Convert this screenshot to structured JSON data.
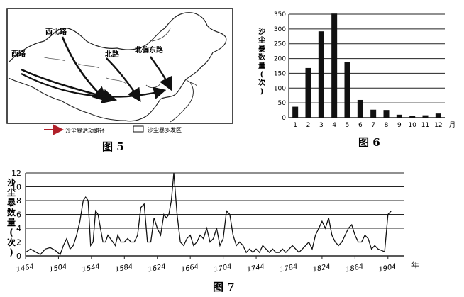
{
  "figure5": {
    "caption": "图 5",
    "routes": [
      {
        "name": "西路"
      },
      {
        "name": "西北路"
      },
      {
        "name": "北路"
      },
      {
        "name": "北偏东路"
      }
    ],
    "legend": {
      "path_label": "沙尘暴活动路径",
      "area_label": "沙尘暴多发区"
    }
  },
  "figure6": {
    "caption": "图 6",
    "chart_data": {
      "type": "bar",
      "ylabel": "沙尘暴数量(次)",
      "xunit": "月",
      "categories": [
        "1",
        "2",
        "3",
        "4",
        "5",
        "6",
        "7",
        "8",
        "9",
        "10",
        "11",
        "12"
      ],
      "values": [
        37,
        168,
        292,
        352,
        188,
        60,
        27,
        26,
        10,
        6,
        8,
        14
      ],
      "ylim": [
        0,
        350
      ],
      "yticks": [
        0,
        50,
        100,
        150,
        200,
        250,
        300,
        350
      ],
      "grid": true
    }
  },
  "figure7": {
    "caption": "图 7",
    "chart_data": {
      "type": "line",
      "ylabel": "沙尘暴数量(次)",
      "xunit": "年",
      "xticks": [
        1464,
        1504,
        1544,
        1584,
        1624,
        1664,
        1704,
        1744,
        1784,
        1824,
        1864,
        1904
      ],
      "xlim": [
        1464,
        1924
      ],
      "ylim": [
        0,
        12
      ],
      "yticks": [
        0,
        2,
        4,
        6,
        8,
        10,
        12
      ],
      "grid": true,
      "x": [
        1464,
        1470,
        1476,
        1482,
        1488,
        1494,
        1500,
        1506,
        1510,
        1514,
        1518,
        1522,
        1526,
        1530,
        1534,
        1537,
        1540,
        1543,
        1546,
        1549,
        1552,
        1555,
        1558,
        1561,
        1564,
        1567,
        1570,
        1573,
        1576,
        1580,
        1584,
        1588,
        1592,
        1596,
        1600,
        1604,
        1608,
        1612,
        1616,
        1620,
        1624,
        1628,
        1632,
        1635,
        1638,
        1641,
        1644,
        1648,
        1652,
        1656,
        1660,
        1664,
        1668,
        1672,
        1676,
        1680,
        1684,
        1688,
        1692,
        1696,
        1700,
        1704,
        1708,
        1712,
        1716,
        1720,
        1724,
        1728,
        1732,
        1736,
        1740,
        1744,
        1748,
        1752,
        1756,
        1760,
        1764,
        1768,
        1772,
        1776,
        1780,
        1784,
        1788,
        1792,
        1796,
        1800,
        1804,
        1808,
        1812,
        1816,
        1820,
        1824,
        1828,
        1832,
        1836,
        1840,
        1844,
        1848,
        1852,
        1856,
        1860,
        1864,
        1868,
        1872,
        1876,
        1880,
        1884,
        1888,
        1892,
        1896,
        1900,
        1904,
        1908
      ],
      "y": [
        0.5,
        1,
        0.6,
        0.2,
        1,
        1.2,
        0.8,
        0.2,
        1.5,
        2.5,
        1,
        1.5,
        3,
        5,
        8,
        8.5,
        8,
        1.5,
        2,
        6.5,
        6,
        4,
        2,
        2,
        3,
        2.5,
        2,
        1.5,
        3,
        2,
        2,
        2.5,
        2,
        2,
        3,
        7,
        7.5,
        2,
        2,
        5.5,
        4,
        3,
        6,
        5.5,
        6,
        8,
        12,
        6,
        2,
        1.5,
        2.5,
        3,
        1.5,
        2,
        3,
        2.5,
        4,
        2,
        2.5,
        4,
        1.5,
        2.5,
        6.5,
        6,
        3,
        1.5,
        2,
        1.5,
        0.5,
        1,
        0.5,
        1,
        0.5,
        1.5,
        1,
        0.5,
        1,
        0.5,
        0.5,
        1,
        0.5,
        1,
        1.5,
        1,
        0.5,
        1,
        1.5,
        2,
        1,
        3,
        4,
        5,
        4,
        5.5,
        3,
        2,
        1.5,
        2,
        3,
        4,
        4.5,
        3,
        2,
        2,
        3,
        2.5,
        1,
        1.5,
        1,
        0.8,
        0.6,
        6,
        6.5
      ]
    }
  }
}
